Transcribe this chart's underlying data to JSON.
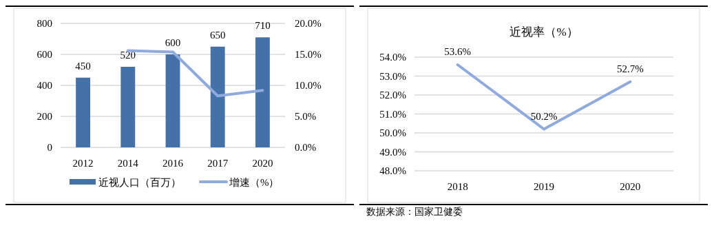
{
  "chart_data": [
    {
      "type": "bar",
      "categories": [
        "2012",
        "2014",
        "2016",
        "2017",
        "2020"
      ],
      "series": [
        {
          "name": "近视人口（百万）",
          "color": "#4472a8",
          "values": [
            450,
            520,
            600,
            650,
            710
          ],
          "value_labels": [
            "450",
            "520",
            "600",
            "650",
            "710"
          ]
        },
        {
          "name": "增速（%）",
          "type": "line",
          "axis": "y2",
          "color": "#8faadc",
          "values": [
            null,
            15.6,
            15.4,
            8.3,
            9.2
          ]
        }
      ],
      "ylim": [
        0,
        800
      ],
      "yticks": [
        0,
        200,
        400,
        600,
        800
      ],
      "y2lim": [
        0,
        20
      ],
      "y2ticks": [
        {
          "value": 0,
          "label": "0.0%"
        },
        {
          "value": 5,
          "label": "5.0%"
        },
        {
          "value": 10,
          "label": "10.0%"
        },
        {
          "value": 15,
          "label": "15.0%"
        },
        {
          "value": 20,
          "label": "20.0%"
        }
      ],
      "grid": "y",
      "legend": "bottom"
    },
    {
      "type": "line",
      "title": "近视率（%）",
      "categories": [
        "2018",
        "2019",
        "2020"
      ],
      "series": [
        {
          "color": "#8faadc",
          "values": [
            53.6,
            50.2,
            52.7
          ],
          "value_labels": [
            "53.6%",
            "50.2%",
            "52.7%"
          ]
        }
      ],
      "ylim": [
        48,
        54
      ],
      "yticks": [
        {
          "value": 48,
          "label": "48.0%"
        },
        {
          "value": 49,
          "label": "49.0%"
        },
        {
          "value": 50,
          "label": "50.0%"
        },
        {
          "value": 51,
          "label": "51.0%"
        },
        {
          "value": 52,
          "label": "52.0%"
        },
        {
          "value": 53,
          "label": "53.0%"
        },
        {
          "value": 54,
          "label": "54.0%"
        }
      ],
      "grid": "y",
      "legend": false,
      "annotations": [
        "数据来源：国家卫健委"
      ]
    }
  ]
}
